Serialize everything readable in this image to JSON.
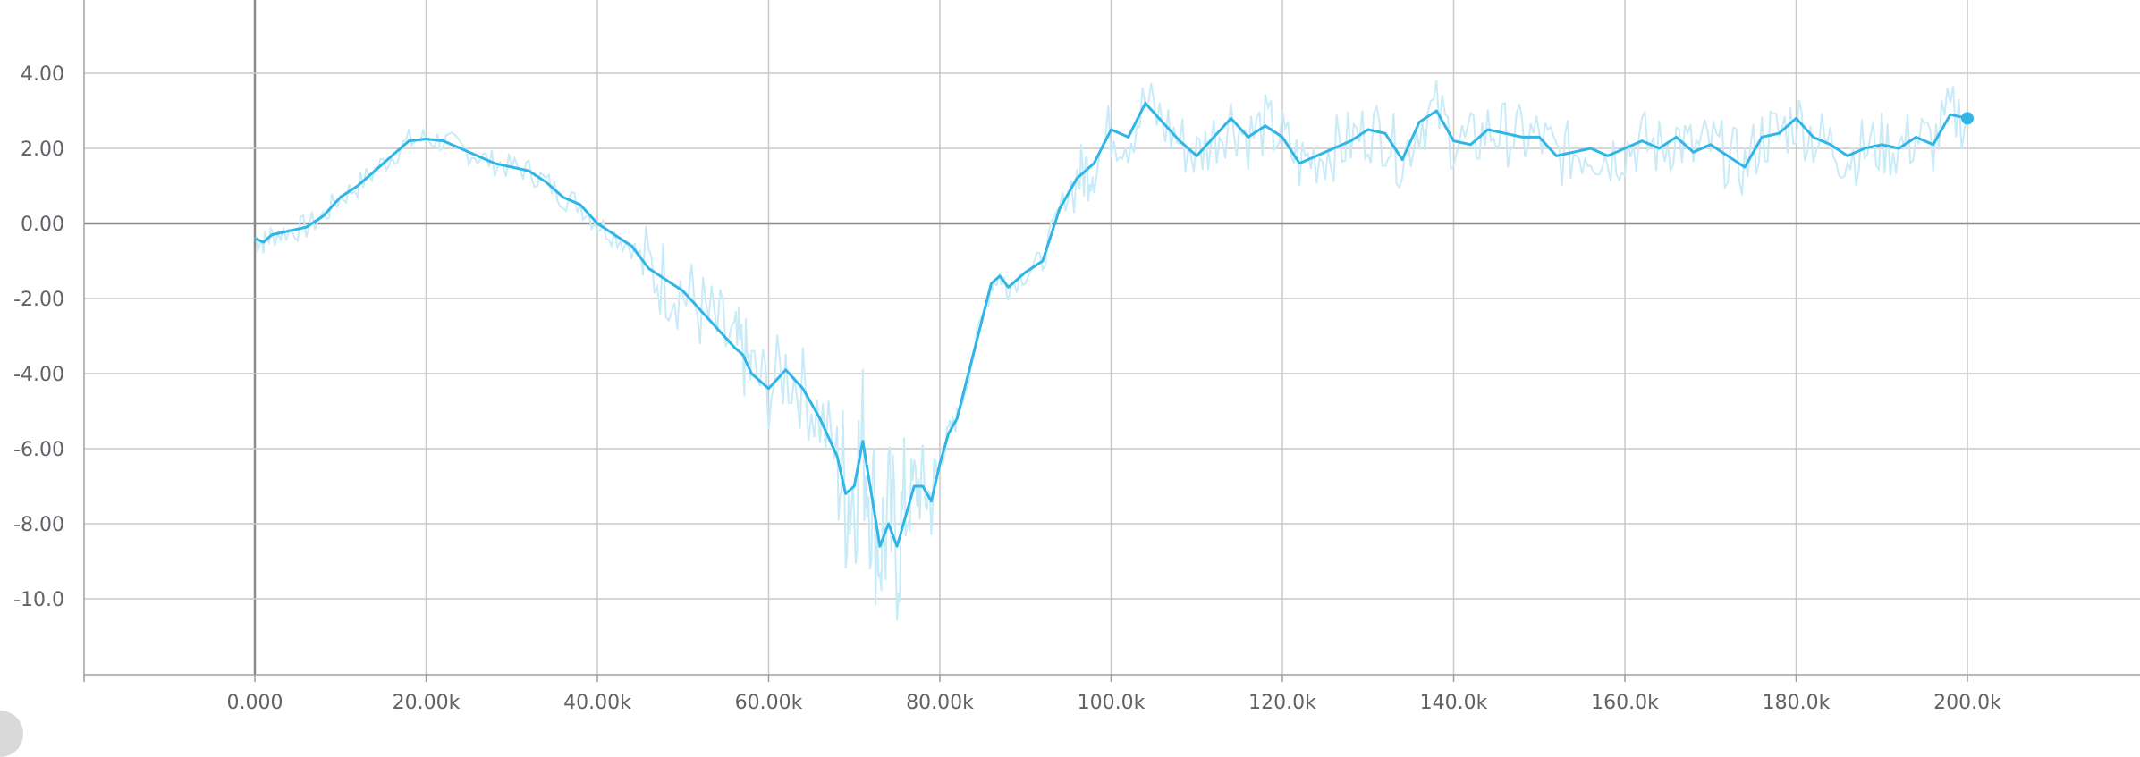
{
  "chart_data": {
    "type": "line",
    "title": "",
    "xlabel": "",
    "ylabel": "",
    "xlim": [
      -20000,
      220000
    ],
    "ylim": [
      -12,
      6
    ],
    "grid": true,
    "x_ticks": [
      0,
      20000,
      40000,
      60000,
      80000,
      100000,
      120000,
      140000,
      160000,
      180000,
      200000
    ],
    "x_tick_labels": [
      "0.000",
      "20.00k",
      "40.00k",
      "60.00k",
      "80.00k",
      "100.0k",
      "120.0k",
      "140.0k",
      "160.0k",
      "180.0k",
      "200.0k"
    ],
    "y_ticks": [
      4,
      2,
      0,
      -2,
      -4,
      -6,
      -8,
      -10
    ],
    "y_tick_labels": [
      "4.00",
      "2.00",
      "0.00",
      "-2.00",
      "-4.00",
      "-6.00",
      "-8.00",
      "-10.0"
    ],
    "colors": {
      "smoothed": "#2fb5e6",
      "raw": "#c9ebf7"
    },
    "series": [
      {
        "role": "smoothed",
        "x": [
          0,
          1000,
          2000,
          4000,
          6000,
          8000,
          10000,
          12000,
          14000,
          16000,
          18000,
          20000,
          22000,
          24000,
          26000,
          28000,
          30000,
          32000,
          34000,
          36000,
          38000,
          40000,
          42000,
          44000,
          46000,
          48000,
          50000,
          52000,
          54000,
          56000,
          57000,
          58000,
          60000,
          62000,
          64000,
          66000,
          68000,
          69000,
          70000,
          71000,
          72000,
          73000,
          74000,
          75000,
          76000,
          77000,
          78000,
          79000,
          80000,
          81000,
          82000,
          84000,
          86000,
          87000,
          88000,
          90000,
          92000,
          94000,
          96000,
          97000,
          98000,
          100000,
          102000,
          104000,
          106000,
          108000,
          110000,
          112000,
          114000,
          116000,
          118000,
          120000,
          122000,
          124000,
          126000,
          128000,
          130000,
          132000,
          134000,
          136000,
          138000,
          140000,
          142000,
          144000,
          146000,
          148000,
          150000,
          152000,
          154000,
          156000,
          158000,
          160000,
          162000,
          164000,
          166000,
          168000,
          170000,
          172000,
          174000,
          176000,
          178000,
          180000,
          182000,
          184000,
          186000,
          188000,
          190000,
          192000,
          194000,
          196000,
          198000,
          200000
        ],
        "y": [
          -0.4,
          -0.5,
          -0.3,
          -0.2,
          -0.1,
          0.2,
          0.7,
          1.0,
          1.4,
          1.8,
          2.2,
          2.25,
          2.2,
          2.0,
          1.8,
          1.6,
          1.5,
          1.4,
          1.1,
          0.7,
          0.5,
          0.0,
          -0.3,
          -0.6,
          -1.2,
          -1.5,
          -1.8,
          -2.3,
          -2.8,
          -3.3,
          -3.5,
          -4.0,
          -4.4,
          -3.9,
          -4.4,
          -5.2,
          -6.2,
          -7.2,
          -7.0,
          -5.8,
          -7.2,
          -8.6,
          -8.0,
          -8.6,
          -7.8,
          -7.0,
          -7.0,
          -7.4,
          -6.4,
          -5.6,
          -5.2,
          -3.4,
          -1.6,
          -1.4,
          -1.7,
          -1.3,
          -1.0,
          0.4,
          1.2,
          1.4,
          1.6,
          2.5,
          2.3,
          3.2,
          2.7,
          2.2,
          1.8,
          2.3,
          2.8,
          2.3,
          2.6,
          2.3,
          1.6,
          1.8,
          2.0,
          2.2,
          2.5,
          2.4,
          1.7,
          2.7,
          3.0,
          2.2,
          2.1,
          2.5,
          2.4,
          2.3,
          2.3,
          1.8,
          1.9,
          2.0,
          1.8,
          2.0,
          2.2,
          2.0,
          2.3,
          1.9,
          2.1,
          1.8,
          1.5,
          2.3,
          2.4,
          2.8,
          2.3,
          2.1,
          1.8,
          2.0,
          2.1,
          2.0,
          2.3,
          2.1,
          2.9,
          2.8
        ]
      }
    ]
  }
}
